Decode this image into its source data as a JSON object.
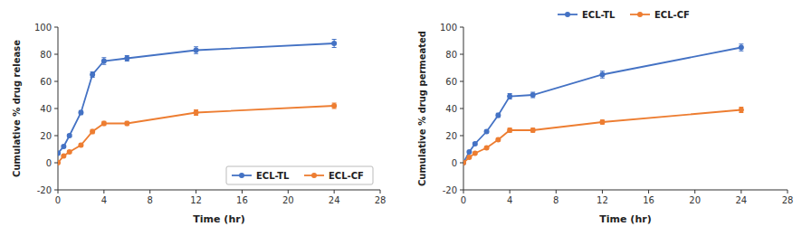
{
  "chart_data": [
    {
      "type": "line",
      "xlabel": "Time (hr)",
      "ylabel": "Cumulative % drug release",
      "xlim": [
        0,
        28
      ],
      "ylim": [
        -20,
        100
      ],
      "xticks": [
        0,
        4,
        8,
        12,
        16,
        20,
        24,
        28
      ],
      "yticks": [
        -20,
        0,
        20,
        40,
        60,
        80,
        100
      ],
      "x": [
        0,
        0.5,
        1,
        2,
        3,
        4,
        6,
        12,
        24
      ],
      "legend": "lower right",
      "marker": "circle",
      "series": [
        {
          "name": "ECL-TL",
          "color": "#4472C4",
          "values": [
            7,
            12,
            20,
            37,
            65,
            75,
            77,
            83,
            88
          ],
          "errors": [
            0.5,
            0.8,
            1.0,
            1.5,
            2.0,
            2.5,
            2.0,
            2.5,
            3.0
          ]
        },
        {
          "name": "ECL-CF",
          "color": "#ED7D31",
          "values": [
            0,
            5,
            8,
            13,
            23,
            29,
            29,
            37,
            42
          ],
          "errors": [
            0.3,
            0.5,
            0.8,
            1.0,
            1.5,
            1.5,
            1.5,
            2.0,
            2.0
          ]
        }
      ]
    },
    {
      "type": "line",
      "xlabel": "Time (hr)",
      "ylabel": "Cumulative % drug permeated",
      "xlim": [
        0,
        28
      ],
      "ylim": [
        -20,
        100
      ],
      "xticks": [
        0,
        4,
        8,
        12,
        16,
        20,
        24,
        28
      ],
      "yticks": [
        -20,
        0,
        20,
        40,
        60,
        80,
        100
      ],
      "x": [
        0,
        0.5,
        1,
        2,
        3,
        4,
        6,
        12,
        24
      ],
      "legend": "top",
      "marker": "circle",
      "series": [
        {
          "name": "ECL-TL",
          "color": "#4472C4",
          "values": [
            0,
            8,
            14,
            23,
            35,
            49,
            50,
            65,
            85
          ],
          "errors": [
            0.3,
            0.5,
            0.8,
            1.0,
            1.5,
            2.0,
            2.0,
            2.5,
            2.5
          ]
        },
        {
          "name": "ECL-CF",
          "color": "#ED7D31",
          "values": [
            0,
            4,
            7,
            11,
            17,
            24,
            24,
            30,
            39
          ],
          "errors": [
            0.2,
            0.4,
            0.6,
            0.8,
            1.0,
            1.5,
            1.5,
            1.5,
            2.0
          ]
        }
      ]
    }
  ]
}
